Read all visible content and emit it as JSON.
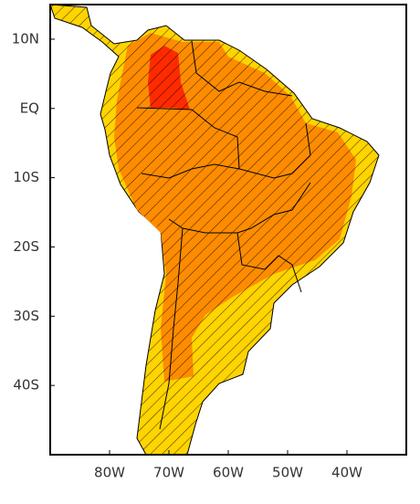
{
  "map": {
    "xlim": [
      -90,
      -30
    ],
    "ylim": [
      -50,
      15
    ],
    "lon_ticks": [
      {
        "value": -80,
        "label": "80W"
      },
      {
        "value": -70,
        "label": "70W"
      },
      {
        "value": -60,
        "label": "60W"
      },
      {
        "value": -50,
        "label": "50W"
      },
      {
        "value": -40,
        "label": "40W"
      }
    ],
    "lat_ticks": [
      {
        "value": 10,
        "label": "10N"
      },
      {
        "value": 0,
        "label": "EQ"
      },
      {
        "value": -10,
        "label": "10S"
      },
      {
        "value": -20,
        "label": "20S"
      },
      {
        "value": -30,
        "label": "30S"
      },
      {
        "value": -40,
        "label": "40S"
      }
    ]
  }
}
